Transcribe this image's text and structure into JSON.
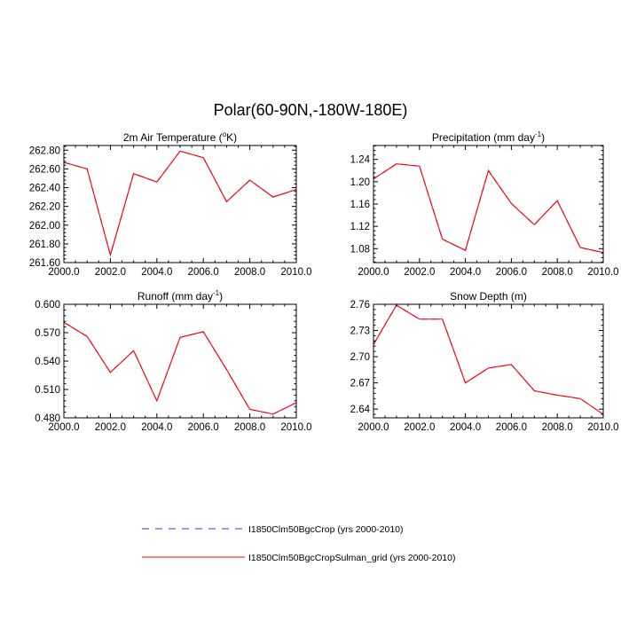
{
  "figure": {
    "title": "Polar(60-90N,-180W-180E)"
  },
  "legend": {
    "entries": [
      {
        "label": "I1850Clm50BgcCrop (yrs 2000-2010)",
        "color": "#3333ff",
        "style": "dashed"
      },
      {
        "label": "I1850Clm50BgcCropSulman_grid (yrs 2000-2010)",
        "color": "#ff0000",
        "style": "solid"
      }
    ]
  },
  "chart_data": [
    {
      "type": "line",
      "title": "2m Air Temperature (°K)",
      "title_parts": [
        "2m Air Temperature (",
        "o",
        "K)"
      ],
      "x": [
        2000,
        2001,
        2002,
        2003,
        2004,
        2005,
        2006,
        2007,
        2008,
        2009,
        2010
      ],
      "xlim": [
        2000,
        2010
      ],
      "ylim": [
        261.6,
        262.85
      ],
      "xticks": [
        2000,
        2002,
        2004,
        2006,
        2008,
        2010
      ],
      "xtick_labels": [
        "2000.0",
        "2002.0",
        "2004.0",
        "2006.0",
        "2008.0",
        "2010.0"
      ],
      "yticks": [
        261.6,
        261.8,
        262.0,
        262.2,
        262.4,
        262.6,
        262.8
      ],
      "ytick_labels": [
        "261.60",
        "261.80",
        "262.00",
        "262.20",
        "262.40",
        "262.60",
        "262.80"
      ],
      "series": [
        {
          "values": [
            262.67,
            262.6,
            261.68,
            262.55,
            262.46,
            262.79,
            262.72,
            262.25,
            262.48,
            262.3,
            262.38
          ]
        },
        {
          "values": [
            262.67,
            262.6,
            261.68,
            262.55,
            262.46,
            262.79,
            262.72,
            262.25,
            262.48,
            262.3,
            262.38
          ]
        }
      ]
    },
    {
      "type": "line",
      "title": "Precipitation (mm day-1)",
      "title_parts": [
        "Precipitation (mm day",
        "-1",
        ")"
      ],
      "x": [
        2000,
        2001,
        2002,
        2003,
        2004,
        2005,
        2006,
        2007,
        2008,
        2009,
        2010
      ],
      "xlim": [
        2000,
        2010
      ],
      "ylim": [
        1.055,
        1.265
      ],
      "xticks": [
        2000,
        2002,
        2004,
        2006,
        2008,
        2010
      ],
      "xtick_labels": [
        "2000.0",
        "2002.0",
        "2004.0",
        "2006.0",
        "2008.0",
        "2010.0"
      ],
      "yticks": [
        1.08,
        1.12,
        1.16,
        1.2,
        1.24
      ],
      "ytick_labels": [
        "1.08",
        "1.12",
        "1.16",
        "1.20",
        "1.24"
      ],
      "series": [
        {
          "values": [
            1.205,
            1.232,
            1.228,
            1.097,
            1.077,
            1.22,
            1.161,
            1.123,
            1.166,
            1.082,
            1.073
          ]
        },
        {
          "values": [
            1.205,
            1.232,
            1.228,
            1.097,
            1.077,
            1.22,
            1.161,
            1.123,
            1.166,
            1.082,
            1.073
          ]
        }
      ]
    },
    {
      "type": "line",
      "title": "Runoff (mm day-1)",
      "title_parts": [
        "Runoff (mm day",
        "-1",
        ")"
      ],
      "x": [
        2000,
        2001,
        2002,
        2003,
        2004,
        2005,
        2006,
        2007,
        2008,
        2009,
        2010
      ],
      "xlim": [
        2000,
        2010
      ],
      "ylim": [
        0.48,
        0.6
      ],
      "xticks": [
        2000,
        2002,
        2004,
        2006,
        2008,
        2010
      ],
      "xtick_labels": [
        "2000.0",
        "2002.0",
        "2004.0",
        "2006.0",
        "2008.0",
        "2010.0"
      ],
      "yticks": [
        0.48,
        0.51,
        0.54,
        0.57,
        0.6
      ],
      "ytick_labels": [
        "0.480",
        "0.510",
        "0.540",
        "0.570",
        "0.600"
      ],
      "series": [
        {
          "values": [
            0.581,
            0.566,
            0.528,
            0.551,
            0.498,
            0.565,
            0.571,
            0.531,
            0.489,
            0.484,
            0.496
          ]
        },
        {
          "values": [
            0.581,
            0.566,
            0.528,
            0.551,
            0.498,
            0.565,
            0.571,
            0.531,
            0.489,
            0.484,
            0.496
          ]
        }
      ]
    },
    {
      "type": "line",
      "title": "Snow Depth (m)",
      "title_parts": [
        "Snow Depth (m)",
        "",
        ""
      ],
      "x": [
        2000,
        2001,
        2002,
        2003,
        2004,
        2005,
        2006,
        2007,
        2008,
        2009,
        2010
      ],
      "xlim": [
        2000,
        2010
      ],
      "ylim": [
        2.63,
        2.76
      ],
      "xticks": [
        2000,
        2002,
        2004,
        2006,
        2008,
        2010
      ],
      "xtick_labels": [
        "2000.0",
        "2002.0",
        "2004.0",
        "2006.0",
        "2008.0",
        "2010.0"
      ],
      "yticks": [
        2.64,
        2.67,
        2.7,
        2.73,
        2.76
      ],
      "ytick_labels": [
        "2.64",
        "2.67",
        "2.70",
        "2.73",
        "2.76"
      ],
      "series": [
        {
          "values": [
            2.714,
            2.759,
            2.743,
            2.743,
            2.67,
            2.687,
            2.691,
            2.661,
            2.656,
            2.652,
            2.634
          ]
        },
        {
          "values": [
            2.714,
            2.759,
            2.743,
            2.743,
            2.67,
            2.687,
            2.691,
            2.661,
            2.656,
            2.652,
            2.634
          ]
        }
      ]
    }
  ]
}
